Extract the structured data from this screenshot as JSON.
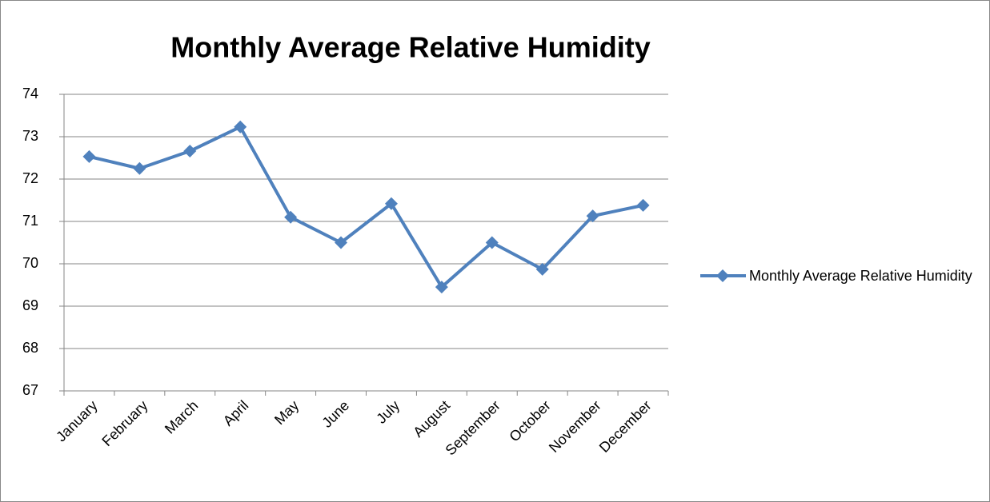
{
  "chart_data": {
    "type": "line",
    "title": "Monthly Average Relative Humidity",
    "categories": [
      "January",
      "February",
      "March",
      "April",
      "May",
      "June",
      "July",
      "August",
      "September",
      "October",
      "November",
      "December"
    ],
    "series": [
      {
        "name": "Monthly Average Relative Humidity",
        "color": "#4f81bd",
        "values": [
          72.53,
          72.25,
          72.66,
          73.23,
          71.1,
          70.5,
          71.42,
          69.45,
          70.5,
          69.87,
          71.13,
          71.38
        ]
      }
    ],
    "ylim": [
      67,
      74
    ],
    "yticks": [
      67,
      68,
      69,
      70,
      71,
      72,
      73,
      74
    ],
    "grid": true,
    "legend": "right"
  }
}
